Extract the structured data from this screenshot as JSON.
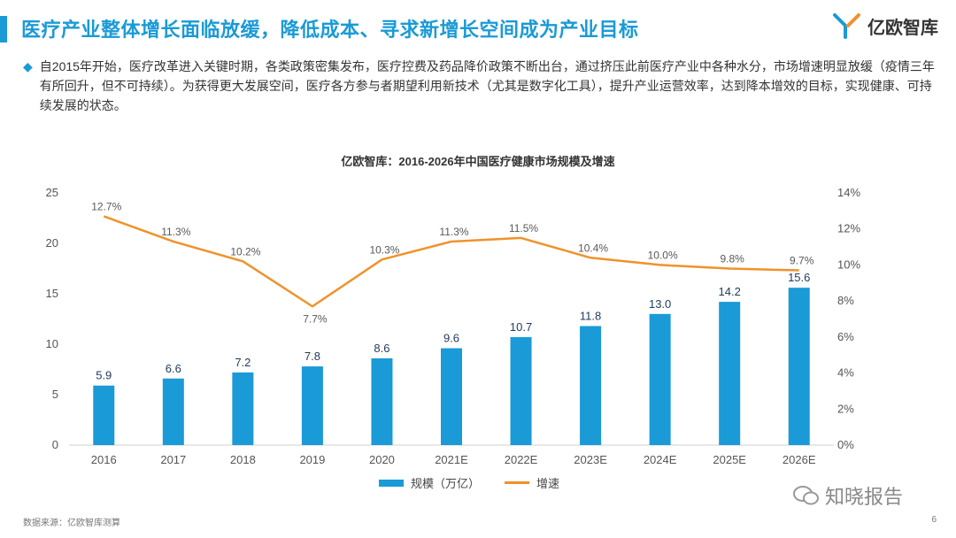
{
  "header": {
    "title": "医疗产业整体增长面临放缓，降低成本、寻求新增长空间成为产业目标",
    "brand": "亿欧智库"
  },
  "body": {
    "bullet": "自2015年开始，医疗改革进入关键时期，各类政策密集发布，医疗控费及药品降价政策不断出台，通过挤压此前医疗产业中各种水分，市场增速明显放缓（疫情三年有所回升，但不可持续）。为获得更大发展空间，医疗各方参与者期望利用新技术（尤其是数字化工具），提升产业运营效率，达到降本增效的目标，实现健康、可持续发展的状态。"
  },
  "chart_data": {
    "type": "bar",
    "title": "亿欧智库：2016-2026年中国医疗健康市场规模及增速",
    "categories": [
      "2016",
      "2017",
      "2018",
      "2019",
      "2020",
      "2021E",
      "2022E",
      "2023E",
      "2024E",
      "2025E",
      "2026E"
    ],
    "series": [
      {
        "name": "规模（万亿）",
        "type": "bar",
        "axis": "left",
        "values": [
          5.9,
          6.6,
          7.2,
          7.8,
          8.6,
          9.6,
          10.7,
          11.8,
          13.0,
          14.2,
          15.6
        ],
        "labels": [
          "5.9",
          "6.6",
          "7.2",
          "7.8",
          "8.6",
          "9.6",
          "10.7",
          "11.8",
          "13.0",
          "14.2",
          "15.6"
        ]
      },
      {
        "name": "增速",
        "type": "line",
        "axis": "right",
        "values": [
          12.7,
          11.3,
          10.2,
          7.7,
          10.3,
          11.3,
          11.5,
          10.4,
          10.0,
          9.8,
          9.7
        ],
        "labels": [
          "12.7%",
          "11.3%",
          "10.2%",
          "7.7%",
          "10.3%",
          "11.3%",
          "11.5%",
          "10.4%",
          "10.0%",
          "9.8%",
          "9.7%"
        ]
      }
    ],
    "left_axis": {
      "ylim": [
        0,
        25
      ],
      "ticks": [
        "0",
        "5",
        "10",
        "15",
        "20",
        "25"
      ]
    },
    "right_axis": {
      "ylim": [
        0,
        14
      ],
      "ticks": [
        "0%",
        "2%",
        "4%",
        "6%",
        "8%",
        "10%",
        "12%",
        "14%"
      ]
    },
    "grid": false,
    "legend_position": "bottom",
    "colors": {
      "bar": "#1a9ad7",
      "line": "#f0922b"
    }
  },
  "footer": {
    "source": "数据来源：亿欧智库测算",
    "watermark": "知晓报告",
    "page": "6"
  }
}
